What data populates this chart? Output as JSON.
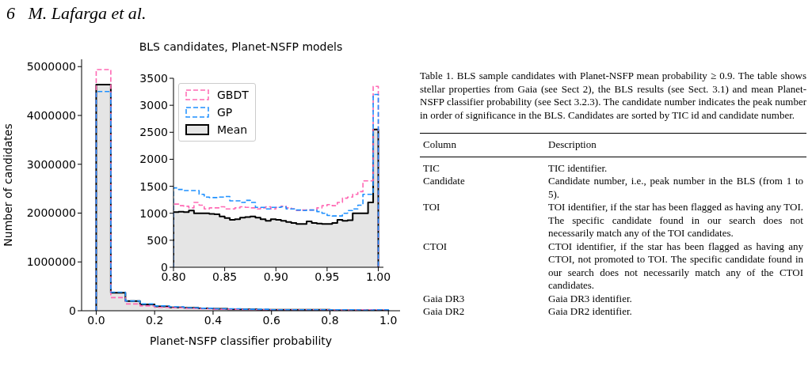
{
  "chart_data": [
    {
      "type": "histogram",
      "title": "BLS candidates, Planet-NSFP models",
      "xlabel": "Planet-NSFP classifier probability",
      "ylabel": "Number of candidates",
      "bins": [
        0,
        0.05,
        0.1,
        0.15,
        0.2,
        0.25,
        0.3,
        0.35,
        0.4,
        0.45,
        0.5,
        0.55,
        0.6,
        0.65,
        0.7,
        0.75,
        0.8,
        0.85,
        0.9,
        0.95,
        1
      ],
      "series": [
        {
          "color": "#ff69b4",
          "line_style": "dashed",
          "values": [
            4940000,
            270000,
            140000,
            100000,
            70000,
            60000,
            50000,
            40000,
            30000,
            30000,
            20000,
            20000,
            20000,
            20000,
            20000,
            20000,
            10000,
            10000,
            20000,
            20000
          ]
        },
        {
          "color": "#1e90ff",
          "line_style": "dashed",
          "values": [
            4490000,
            380000,
            200000,
            140000,
            100000,
            80000,
            60000,
            50000,
            40000,
            40000,
            30000,
            30000,
            20000,
            20000,
            20000,
            20000,
            20000,
            20000,
            10000,
            20000
          ]
        },
        {
          "color": "#000000",
          "line_style": "solid",
          "values": [
            4630000,
            370000,
            200000,
            130000,
            90000,
            70000,
            60000,
            50000,
            40000,
            30000,
            30000,
            20000,
            20000,
            20000,
            20000,
            20000,
            10000,
            10000,
            10000,
            10000
          ]
        }
      ],
      "xlim": [
        -0.05,
        1.04
      ],
      "xticks": [
        {
          "value": 0,
          "label": "0.0"
        },
        {
          "value": 0.2,
          "label": "0.2"
        },
        {
          "value": 0.4,
          "label": "0.4"
        },
        {
          "value": 0.6,
          "label": "0.6"
        },
        {
          "value": 0.8,
          "label": "0.8"
        },
        {
          "value": 1,
          "label": "1.0"
        }
      ],
      "ylim": [
        0,
        5150000
      ],
      "yticks": [
        0,
        1000000,
        2000000,
        3000000,
        4000000,
        5000000
      ],
      "legend": false,
      "grid": false
    },
    {
      "type": "histogram",
      "bins": [
        0.8,
        0.805,
        0.81,
        0.815,
        0.82,
        0.825,
        0.83,
        0.835,
        0.84,
        0.845,
        0.85,
        0.855,
        0.86,
        0.865,
        0.87,
        0.875,
        0.88,
        0.885,
        0.89,
        0.895,
        0.9,
        0.905,
        0.91,
        0.915,
        0.92,
        0.925,
        0.93,
        0.935,
        0.94,
        0.945,
        0.95,
        0.955,
        0.96,
        0.965,
        0.97,
        0.975,
        0.98,
        0.985,
        0.99,
        0.995,
        1
      ],
      "series": [
        {
          "name": "GBDT",
          "color": "#ff69b4",
          "line_style": "dashed",
          "values": [
            1170,
            1140,
            1130,
            1100,
            1200,
            1150,
            1080,
            1100,
            1100,
            1120,
            1080,
            1080,
            1100,
            1120,
            1110,
            1100,
            1080,
            1100,
            1120,
            1080,
            1110,
            1130,
            1100,
            1080,
            1050,
            1060,
            1060,
            1060,
            1100,
            1140,
            1160,
            1140,
            1200,
            1280,
            1300,
            1350,
            1400,
            1600,
            1600,
            3350
          ]
        },
        {
          "name": "GP",
          "color": "#1e90ff",
          "line_style": "dashed",
          "values": [
            1470,
            1440,
            1420,
            1420,
            1420,
            1350,
            1300,
            1290,
            1290,
            1300,
            1310,
            1230,
            1230,
            1200,
            1240,
            1200,
            1110,
            1110,
            1080,
            1110,
            1110,
            1120,
            1080,
            1080,
            1060,
            1050,
            1060,
            1060,
            1030,
            1000,
            960,
            950,
            950,
            1000,
            1050,
            1080,
            1150,
            1350,
            1350,
            3200
          ]
        },
        {
          "name": "Mean",
          "color": "#000000",
          "line_style": "solid",
          "values": [
            1020,
            1030,
            1020,
            1050,
            1000,
            1000,
            1000,
            990,
            980,
            940,
            910,
            880,
            890,
            920,
            930,
            940,
            920,
            890,
            860,
            890,
            880,
            860,
            840,
            820,
            800,
            800,
            850,
            820,
            810,
            800,
            800,
            820,
            880,
            860,
            870,
            1000,
            1000,
            1000,
            1200,
            2550
          ]
        }
      ],
      "xlim": [
        0.8,
        1.005
      ],
      "xticks": [
        {
          "value": 0.8,
          "label": "0.80"
        },
        {
          "value": 0.85,
          "label": "0.85"
        },
        {
          "value": 0.9,
          "label": "0.90"
        },
        {
          "value": 0.95,
          "label": "0.95"
        },
        {
          "value": 1,
          "label": "1.00"
        }
      ],
      "ylim": [
        0,
        3500
      ],
      "yticks": [
        0,
        500,
        1000,
        1500,
        2000,
        2500,
        3000,
        3500
      ],
      "legend": "top left",
      "grid": false
    },
    {
      "type": "other",
      "title": "Table 1. BLS sample candidates with Planet-NSFP mean probability ≥ 0.9. The table shows stellar properties from Gaia (see Sect 2), the BLS results (see Sect. 3.1) and mean Planet-NSFP classifier probability (see Sect 3.2.3). The candidate number indicates the peak number in order of significance in the BLS. Candidates are sorted by TIC id and candidate number.",
      "annotations": [
        "6   M. Lafarga et al.",
        "Column",
        "Description",
        "TIC",
        "TIC identifier.",
        "Candidate",
        "Candidate number, i.e., peak number in the BLS (from 1 to 5).",
        "TOI",
        "TOI identifier, if the star has been flagged as having any TOI. The specific candidate found in our search does not necessarily match any of the TOI candidates.",
        "CTOI",
        "CTOI identifier, if the star has been flagged as having any CTOI, not promoted to TOI. The specific candidate found in our search does not necessarily match any of the CTOI candidates.",
        "Gaia DR3",
        "Gaia DR3 identifier.",
        "Gaia DR2",
        "Gaia DR2 identifier."
      ]
    }
  ]
}
